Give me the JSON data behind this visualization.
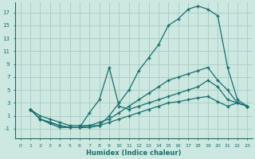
{
  "xlabel": "Humidex (Indice chaleur)",
  "background_color": "#cce8e0",
  "grid_color": "#aacfc8",
  "line_color": "#1a6e6e",
  "xlim": [
    -0.5,
    23.5
  ],
  "ylim": [
    -2.5,
    18.5
  ],
  "xticks": [
    0,
    1,
    2,
    3,
    4,
    5,
    6,
    7,
    8,
    9,
    10,
    11,
    12,
    13,
    14,
    15,
    16,
    17,
    18,
    19,
    20,
    21,
    22,
    23
  ],
  "yticks": [
    -1,
    1,
    3,
    5,
    7,
    9,
    11,
    13,
    15,
    17
  ],
  "lines": [
    {
      "x": [
        1,
        2,
        3,
        4,
        5,
        6,
        7,
        8,
        9,
        10,
        11,
        12,
        13,
        14,
        15,
        16,
        17,
        18,
        19,
        20,
        21,
        22,
        23
      ],
      "y": [
        2,
        1,
        0.5,
        0,
        -0.5,
        -0.5,
        -0.5,
        -0.5,
        1,
        3,
        5,
        8,
        10,
        12,
        15,
        16,
        17.5,
        18,
        17.5,
        16.5,
        8.5,
        3.5,
        2.5
      ]
    },
    {
      "x": [
        1,
        2,
        3,
        4,
        5,
        6,
        7,
        8,
        9,
        10,
        11,
        12,
        13,
        14,
        15,
        16,
        17,
        18,
        19,
        20,
        21,
        22,
        23
      ],
      "y": [
        2,
        0.5,
        0,
        -0.5,
        -0.8,
        -0.8,
        1.5,
        3.5,
        8.5,
        2.5,
        2.0,
        2.5,
        3.0,
        3.5,
        4.0,
        4.5,
        5.0,
        5.5,
        6.5,
        5.5,
        3.5,
        3.0,
        2.5
      ]
    },
    {
      "x": [
        1,
        2,
        3,
        4,
        5,
        6,
        7,
        8,
        9,
        10,
        11,
        12,
        13,
        14,
        15,
        16,
        17,
        18,
        19,
        20,
        21,
        22,
        23
      ],
      "y": [
        2,
        0.5,
        0,
        -0.5,
        -0.8,
        -0.8,
        -0.5,
        0.0,
        0.5,
        1.5,
        2.5,
        3.5,
        4.5,
        5.5,
        6.5,
        7.0,
        7.5,
        8.0,
        8.5,
        6.5,
        5.0,
        3.0,
        2.5
      ]
    },
    {
      "x": [
        1,
        2,
        3,
        4,
        5,
        6,
        7,
        8,
        9,
        10,
        11,
        12,
        13,
        14,
        15,
        16,
        17,
        18,
        19,
        20,
        21,
        22,
        23
      ],
      "y": [
        2,
        0.5,
        -0.2,
        -0.8,
        -0.8,
        -0.8,
        -0.8,
        -0.5,
        0.0,
        0.5,
        1.0,
        1.5,
        2.0,
        2.5,
        3.0,
        3.2,
        3.5,
        3.8,
        4.0,
        3.2,
        2.5,
        3.0,
        2.5
      ]
    }
  ]
}
